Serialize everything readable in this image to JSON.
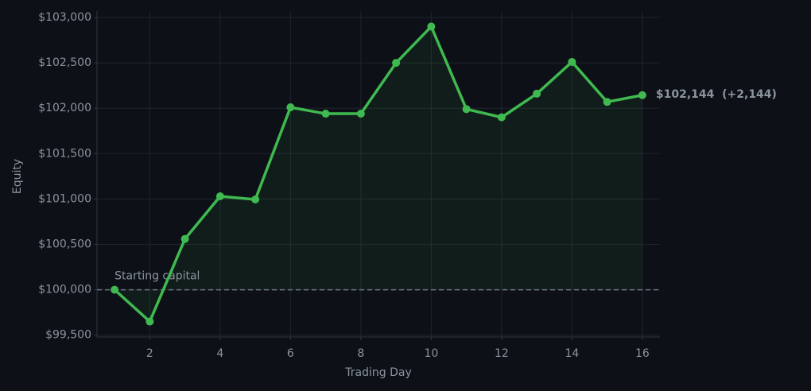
{
  "chart_data": {
    "type": "line",
    "x_label": "Trading Day",
    "y_label": "Equity",
    "x": [
      1,
      2,
      3,
      4,
      5,
      6,
      7,
      8,
      9,
      10,
      11,
      12,
      13,
      14,
      15,
      16
    ],
    "series": [
      {
        "name": "Equity",
        "color": "#3fb950",
        "values": [
          100000,
          99650,
          100560,
          101030,
          100995,
          102010,
          101940,
          101940,
          102500,
          102900,
          101990,
          101900,
          102160,
          102510,
          102070,
          102144
        ]
      }
    ],
    "baseline": 100000,
    "baseline_label": "Starting capital",
    "end_label": "$102,144  (+2,144)",
    "xlim": [
      0.5,
      16.5
    ],
    "ylim": [
      99480,
      103070
    ],
    "xticks": [
      2,
      4,
      6,
      8,
      10,
      12,
      14,
      16
    ],
    "yticks": [
      {
        "value": 99500,
        "label": "$99,500"
      },
      {
        "value": 100000,
        "label": "$100,000"
      },
      {
        "value": 100500,
        "label": "$100,500"
      },
      {
        "value": 101000,
        "label": "$101,000"
      },
      {
        "value": 101500,
        "label": "$101,500"
      },
      {
        "value": 102000,
        "label": "$102,000"
      },
      {
        "value": 102500,
        "label": "$102,500"
      },
      {
        "value": 103000,
        "label": "$103,000"
      }
    ],
    "grid": true
  }
}
